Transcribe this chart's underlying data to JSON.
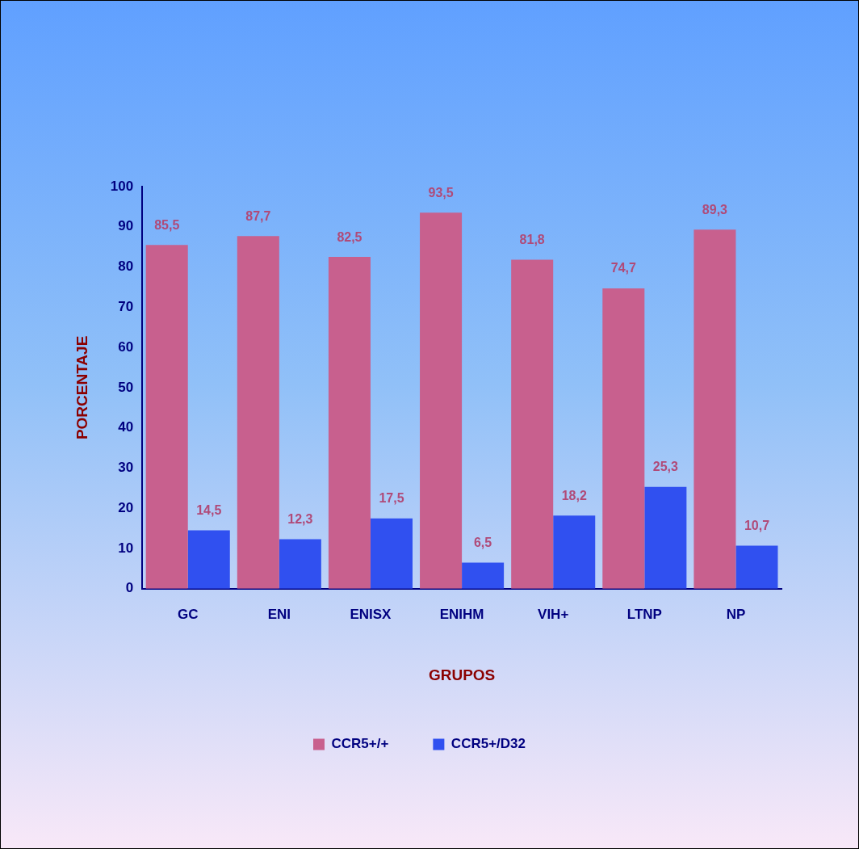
{
  "chart_data": {
    "type": "bar",
    "xlabel": "GRUPOS",
    "ylabel": "PORCENTAJE",
    "categories": [
      "GC",
      "ENI",
      "ENISX",
      "ENIHM",
      "VIH+",
      "LTNP",
      "NP"
    ],
    "series": [
      {
        "name": "CCR5+/+",
        "color": "#c8608e",
        "values": [
          85.5,
          87.7,
          82.5,
          93.5,
          81.8,
          74.7,
          89.3
        ],
        "value_labels": [
          "85,5",
          "87,7",
          "82,5",
          "93,5",
          "81,8",
          "74,7",
          "89,3"
        ]
      },
      {
        "name": "CCR5+/D32",
        "color": "#3050f0",
        "values": [
          14.5,
          12.3,
          17.5,
          6.5,
          18.2,
          25.3,
          10.7
        ],
        "value_labels": [
          "14,5",
          "12,3",
          "17,5",
          "6,5",
          "18,2",
          "25,3",
          "10,7"
        ]
      }
    ],
    "ylim": [
      0,
      100
    ],
    "yticks": [
      0,
      10,
      20,
      30,
      40,
      50,
      60,
      70,
      80,
      90,
      100
    ],
    "grid": false,
    "legend": "bottom"
  }
}
